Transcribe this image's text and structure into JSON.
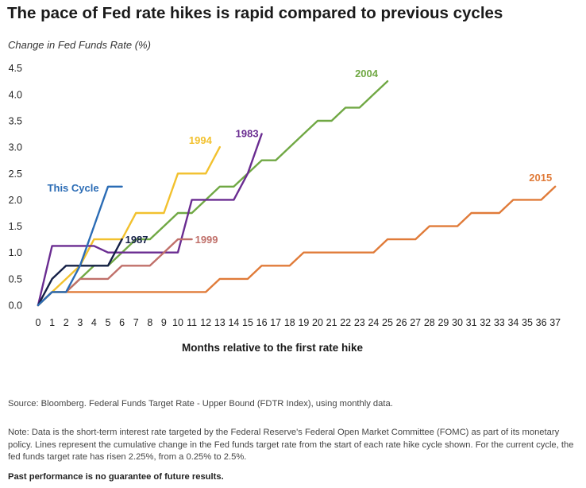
{
  "title": "The pace of Fed rate hikes is rapid compared to previous cycles",
  "source": "Source: Bloomberg. Federal Funds Target Rate - Upper Bound (FDTR Index), using monthly data.",
  "note": "Note: Data is the short-term interest rate targeted by the Federal Reserve's Federal Open Market Committee (FOMC) as part of its monetary policy. Lines represent the cumulative change in the Fed funds target rate from the start of each rate hike cycle shown. For the current cycle, the fed funds target rate has risen 2.25%, from a 0.25% to 2.5%.",
  "disclaimer": "Past performance is no guarantee of future results.",
  "chart_data": {
    "type": "line",
    "title": "The pace of Fed rate hikes is rapid compared to previous cycles",
    "ylabel": "Change in Fed Funds Rate (%)",
    "xlabel": "Months relative to the first rate hike",
    "xlim": [
      0,
      37
    ],
    "ylim": [
      0,
      4.5
    ],
    "xticks": [
      0,
      1,
      2,
      3,
      4,
      5,
      6,
      7,
      8,
      9,
      10,
      11,
      12,
      13,
      14,
      15,
      16,
      17,
      18,
      19,
      20,
      21,
      22,
      23,
      24,
      25,
      26,
      27,
      28,
      29,
      30,
      31,
      32,
      33,
      34,
      35,
      36,
      37
    ],
    "yticks": [
      "0.0",
      "0.5",
      "1.0",
      "1.5",
      "2.0",
      "2.5",
      "3.0",
      "3.5",
      "4.0",
      "4.5"
    ],
    "grid": false,
    "series": [
      {
        "name": "2015",
        "color": "#e07b39",
        "label_pos": "end",
        "x": [
          0,
          1,
          2,
          3,
          4,
          5,
          6,
          7,
          8,
          9,
          10,
          11,
          12,
          13,
          14,
          15,
          16,
          17,
          18,
          19,
          20,
          21,
          22,
          23,
          24,
          25,
          26,
          27,
          28,
          29,
          30,
          31,
          32,
          33,
          34,
          35,
          36,
          37
        ],
        "y": [
          0,
          0.25,
          0.25,
          0.25,
          0.25,
          0.25,
          0.25,
          0.25,
          0.25,
          0.25,
          0.25,
          0.25,
          0.25,
          0.5,
          0.5,
          0.5,
          0.75,
          0.75,
          0.75,
          1.0,
          1.0,
          1.0,
          1.0,
          1.0,
          1.0,
          1.25,
          1.25,
          1.25,
          1.5,
          1.5,
          1.5,
          1.75,
          1.75,
          1.75,
          2.0,
          2.0,
          2.0,
          2.25
        ]
      },
      {
        "name": "2004",
        "color": "#70a844",
        "label_pos": "end",
        "x": [
          0,
          1,
          2,
          3,
          4,
          5,
          6,
          7,
          8,
          9,
          10,
          11,
          12,
          13,
          14,
          15,
          16,
          17,
          18,
          19,
          20,
          21,
          22,
          23,
          24,
          25
        ],
        "y": [
          0,
          0.25,
          0.25,
          0.5,
          0.75,
          0.75,
          1.0,
          1.25,
          1.25,
          1.5,
          1.75,
          1.75,
          2.0,
          2.25,
          2.25,
          2.5,
          2.75,
          2.75,
          3.0,
          3.25,
          3.5,
          3.5,
          3.75,
          3.75,
          4.0,
          4.25
        ]
      },
      {
        "name": "1994",
        "color": "#f2c12e",
        "label_pos": "end",
        "x": [
          0,
          1,
          2,
          3,
          4,
          5,
          6,
          7,
          8,
          9,
          10,
          11,
          12,
          13
        ],
        "y": [
          0,
          0.25,
          0.5,
          0.75,
          1.25,
          1.25,
          1.25,
          1.75,
          1.75,
          1.75,
          2.5,
          2.5,
          2.5,
          3.0
        ]
      },
      {
        "name": "1983",
        "color": "#6a2c91",
        "label_pos": "end",
        "x": [
          0,
          1,
          2,
          3,
          4,
          5,
          6,
          7,
          8,
          9,
          10,
          11,
          12,
          13,
          14,
          15,
          16
        ],
        "y": [
          0,
          1.125,
          1.125,
          1.125,
          1.125,
          1.0,
          1.0,
          1.0,
          1.0,
          1.0,
          1.0,
          2.0,
          2.0,
          2.0,
          2.0,
          2.5,
          3.25
        ]
      },
      {
        "name": "1999",
        "color": "#c0706a",
        "label_pos": "end",
        "x": [
          0,
          1,
          2,
          3,
          4,
          5,
          6,
          7,
          8,
          9,
          10,
          11
        ],
        "y": [
          0,
          0.25,
          0.25,
          0.5,
          0.5,
          0.5,
          0.75,
          0.75,
          0.75,
          1.0,
          1.25,
          1.25
        ]
      },
      {
        "name": "1987",
        "color": "#152047",
        "label_pos": "end",
        "x": [
          0,
          1,
          2,
          3,
          4,
          5,
          6
        ],
        "y": [
          0,
          0.5,
          0.75,
          0.75,
          0.75,
          0.75,
          1.25
        ]
      },
      {
        "name": "This Cycle",
        "color": "#2b6cb5",
        "label_pos": "left",
        "x": [
          0,
          1,
          2,
          3,
          4,
          5,
          6
        ],
        "y": [
          0,
          0.25,
          0.25,
          0.75,
          1.5,
          2.25,
          2.25
        ]
      }
    ]
  }
}
